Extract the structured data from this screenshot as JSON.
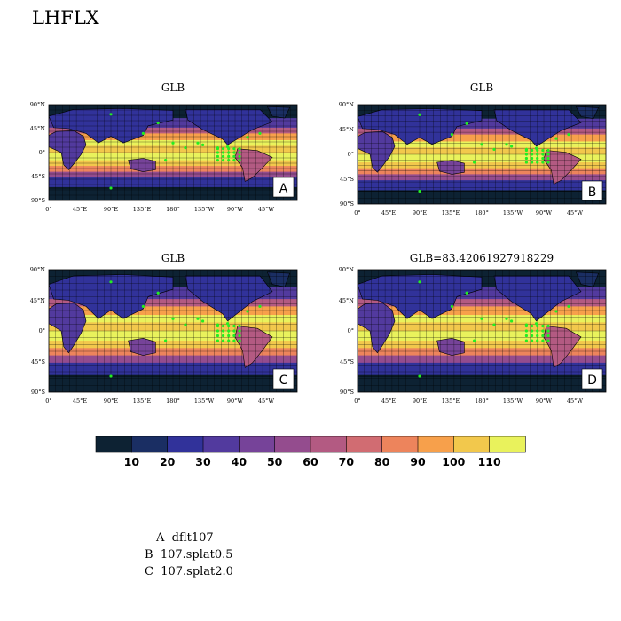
{
  "page": {
    "title": "LHFLX"
  },
  "chart_data": {
    "type": "heatmap",
    "variable": "LHFLX",
    "lat_ticks": [
      "90°N",
      "45°N",
      "0°",
      "45°S",
      "90°S"
    ],
    "lon_ticks": [
      "0°",
      "45°E",
      "90°E",
      "135°E",
      "180°",
      "135°W",
      "90°W",
      "45°W"
    ],
    "panels": [
      {
        "id": "A",
        "title": "GLB",
        "tag": "A"
      },
      {
        "id": "B",
        "title": "GLB",
        "tag": "B"
      },
      {
        "id": "C",
        "title": "GLB",
        "tag": "C"
      },
      {
        "id": "D",
        "title": "GLB=83.42061927918229",
        "tag": "D"
      }
    ],
    "colorbar": {
      "levels": [
        "10",
        "20",
        "30",
        "40",
        "50",
        "60",
        "70",
        "80",
        "90",
        "100",
        "110"
      ],
      "colors": [
        "#0d2233",
        "#1a2e63",
        "#31329a",
        "#523a9e",
        "#764399",
        "#944c8e",
        "#b35a82",
        "#d16c72",
        "#ed845c",
        "#f7a04b",
        "#f2c84c",
        "#e9f25c"
      ]
    }
  },
  "legend": {
    "lines": [
      "A  dflt107",
      "B  107.splat0.5",
      "C  107.splat2.0"
    ]
  }
}
